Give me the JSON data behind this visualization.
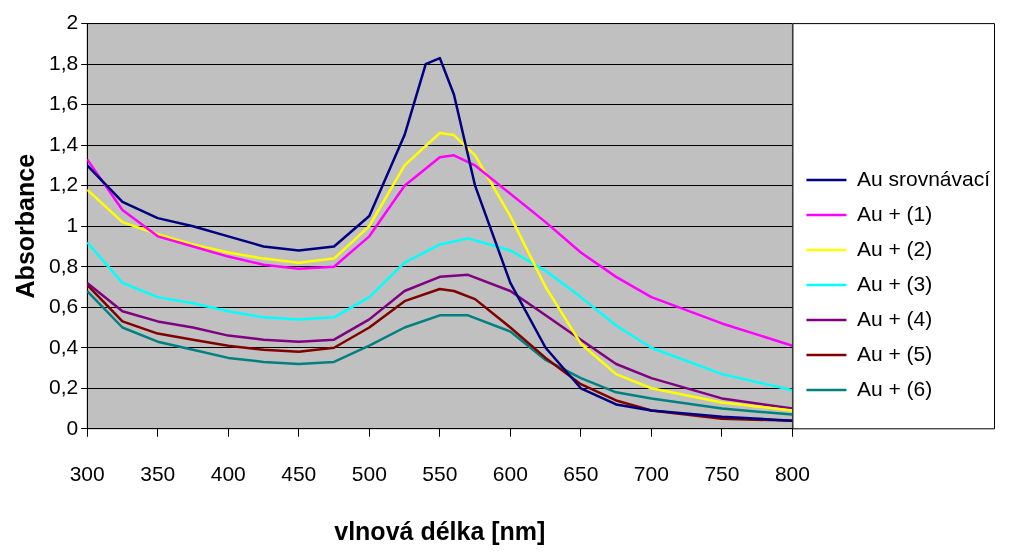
{
  "chart_data": {
    "type": "line",
    "xlabel": "vlnová délka [nm]",
    "ylabel": "Absorbance",
    "xlim": [
      300,
      800
    ],
    "xticks": [
      300,
      350,
      400,
      450,
      500,
      550,
      600,
      650,
      700,
      750,
      800
    ],
    "ylim": [
      0,
      2
    ],
    "yticks": [
      0,
      {
        "value": 0.2,
        "label": "0,2"
      },
      {
        "value": 0.4,
        "label": "0,4"
      },
      {
        "value": 0.6,
        "label": "0,6"
      },
      {
        "value": 0.8,
        "label": "0,8"
      },
      1,
      {
        "value": 1.2,
        "label": "1,2"
      },
      {
        "value": 1.4,
        "label": "1,4"
      },
      {
        "value": 1.6,
        "label": "1,6"
      },
      {
        "value": 1.8,
        "label": "1,8"
      },
      2
    ],
    "grid": "y",
    "legend": "right",
    "marker": "none",
    "line_style": "solid",
    "series": [
      {
        "name": "Au srovnávací",
        "color": "#000080",
        "x": [
          300,
          325,
          350,
          375,
          400,
          425,
          450,
          475,
          500,
          525,
          540,
          550,
          560,
          575,
          600,
          625,
          650,
          675,
          700,
          750,
          800
        ],
        "values": [
          1.3,
          1.12,
          1.04,
          1.0,
          0.95,
          0.9,
          0.88,
          0.9,
          1.05,
          1.45,
          1.8,
          1.83,
          1.65,
          1.2,
          0.72,
          0.4,
          0.2,
          0.12,
          0.09,
          0.06,
          0.04
        ]
      },
      {
        "name": "Au + (1)",
        "color": "#ff00ff",
        "x": [
          300,
          325,
          350,
          375,
          400,
          425,
          450,
          475,
          500,
          525,
          550,
          560,
          575,
          600,
          625,
          650,
          675,
          700,
          750,
          800
        ],
        "values": [
          1.33,
          1.08,
          0.95,
          0.9,
          0.85,
          0.81,
          0.79,
          0.8,
          0.95,
          1.2,
          1.34,
          1.35,
          1.3,
          1.16,
          1.02,
          0.87,
          0.75,
          0.65,
          0.52,
          0.41
        ]
      },
      {
        "name": "Au + (2)",
        "color": "#ffff00",
        "x": [
          300,
          325,
          350,
          375,
          400,
          425,
          450,
          475,
          500,
          525,
          550,
          560,
          575,
          600,
          625,
          650,
          675,
          700,
          750,
          800
        ],
        "values": [
          1.18,
          1.02,
          0.96,
          0.91,
          0.87,
          0.84,
          0.82,
          0.84,
          1.0,
          1.3,
          1.46,
          1.45,
          1.35,
          1.05,
          0.7,
          0.42,
          0.27,
          0.2,
          0.13,
          0.09
        ]
      },
      {
        "name": "Au + (3)",
        "color": "#00ffff",
        "x": [
          300,
          325,
          350,
          375,
          400,
          425,
          450,
          475,
          500,
          525,
          550,
          570,
          600,
          625,
          650,
          675,
          700,
          750,
          800
        ],
        "values": [
          0.92,
          0.72,
          0.65,
          0.62,
          0.58,
          0.55,
          0.54,
          0.55,
          0.65,
          0.82,
          0.91,
          0.94,
          0.88,
          0.78,
          0.65,
          0.51,
          0.4,
          0.27,
          0.19
        ]
      },
      {
        "name": "Au + (4)",
        "color": "#800080",
        "x": [
          300,
          325,
          350,
          375,
          400,
          425,
          450,
          475,
          500,
          525,
          550,
          570,
          600,
          625,
          650,
          675,
          700,
          750,
          800
        ],
        "values": [
          0.72,
          0.58,
          0.53,
          0.5,
          0.46,
          0.44,
          0.43,
          0.44,
          0.54,
          0.68,
          0.75,
          0.76,
          0.68,
          0.56,
          0.44,
          0.32,
          0.25,
          0.15,
          0.1
        ]
      },
      {
        "name": "Au + (5)",
        "color": "#800000",
        "x": [
          300,
          325,
          350,
          375,
          400,
          425,
          450,
          475,
          500,
          525,
          550,
          560,
          575,
          600,
          625,
          650,
          675,
          700,
          750,
          800
        ],
        "values": [
          0.71,
          0.53,
          0.47,
          0.44,
          0.41,
          0.39,
          0.38,
          0.4,
          0.5,
          0.63,
          0.69,
          0.68,
          0.64,
          0.5,
          0.35,
          0.22,
          0.14,
          0.09,
          0.05,
          0.04
        ]
      },
      {
        "name": "Au + (6)",
        "color": "#008080",
        "x": [
          300,
          325,
          350,
          375,
          400,
          425,
          450,
          475,
          500,
          525,
          550,
          570,
          600,
          625,
          650,
          675,
          700,
          750,
          800
        ],
        "values": [
          0.68,
          0.5,
          0.43,
          0.39,
          0.35,
          0.33,
          0.32,
          0.33,
          0.41,
          0.5,
          0.56,
          0.56,
          0.48,
          0.34,
          0.25,
          0.18,
          0.15,
          0.1,
          0.07
        ]
      }
    ]
  }
}
